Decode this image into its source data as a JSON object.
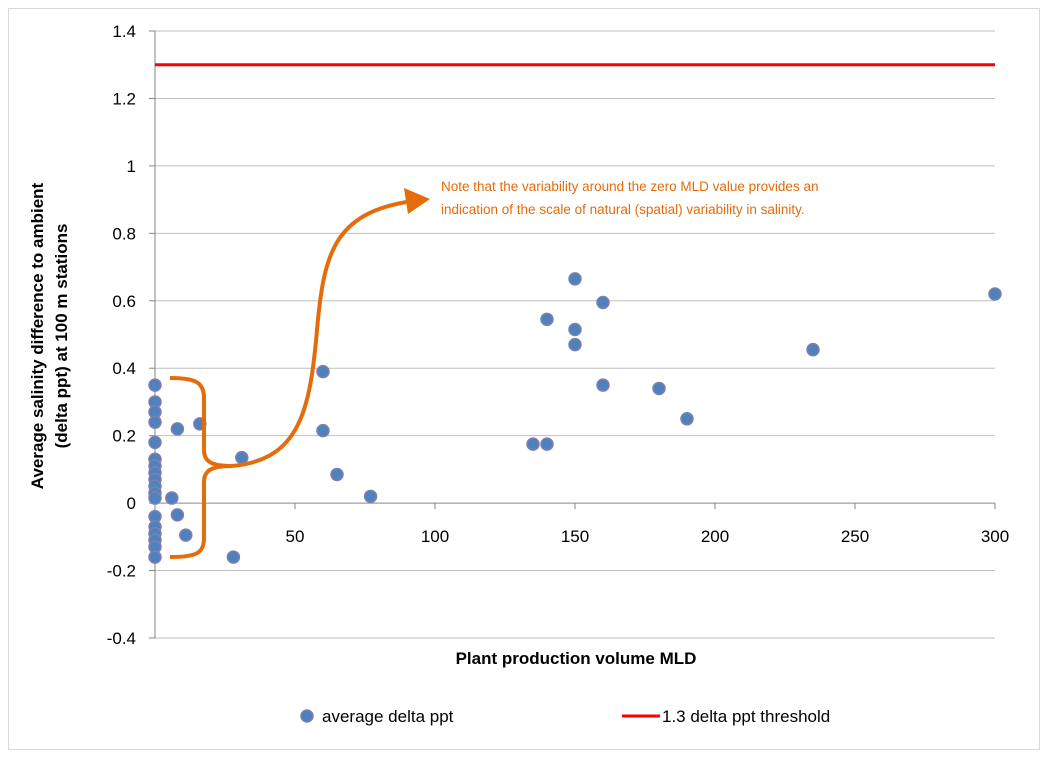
{
  "chart_data": {
    "type": "scatter",
    "xlabel": "Plant production volume MLD",
    "ylabel_lines": [
      "Average salinity difference to ambient",
      "(delta ppt) at 100 m stations"
    ],
    "xlim": [
      0,
      300
    ],
    "ylim": [
      -0.4,
      1.4
    ],
    "x_ticks": [
      "0",
      "50",
      "100",
      "150",
      "200",
      "250",
      "300"
    ],
    "y_ticks": [
      "-0.4",
      "-0.2",
      "0",
      "0.2",
      "0.4",
      "0.6",
      "0.8",
      "1",
      "1.2",
      "1.4"
    ],
    "grid": "horizontal",
    "legend_placement": "bottom",
    "series": [
      {
        "name": "average delta ppt",
        "color": "#4f81bd",
        "edge_color": "#7f7faf",
        "points": [
          [
            0,
            0.35
          ],
          [
            0,
            0.3
          ],
          [
            0,
            0.27
          ],
          [
            0,
            0.24
          ],
          [
            0,
            0.18
          ],
          [
            0,
            0.13
          ],
          [
            0,
            0.11
          ],
          [
            0,
            0.09
          ],
          [
            0,
            0.07
          ],
          [
            0,
            0.05
          ],
          [
            0,
            0.03
          ],
          [
            0,
            0.015
          ],
          [
            0,
            -0.04
          ],
          [
            0,
            -0.07
          ],
          [
            0,
            -0.09
          ],
          [
            0,
            -0.11
          ],
          [
            0,
            -0.13
          ],
          [
            0,
            -0.16
          ],
          [
            6,
            0.015
          ],
          [
            8,
            0.22
          ],
          [
            8,
            -0.035
          ],
          [
            11,
            -0.095
          ],
          [
            16,
            0.235
          ],
          [
            28,
            -0.16
          ],
          [
            31,
            0.135
          ],
          [
            60,
            0.39
          ],
          [
            60,
            0.215
          ],
          [
            65,
            0.085
          ],
          [
            77,
            0.02
          ],
          [
            135,
            0.175
          ],
          [
            140,
            0.545
          ],
          [
            140,
            0.175
          ],
          [
            150,
            0.665
          ],
          [
            150,
            0.515
          ],
          [
            150,
            0.47
          ],
          [
            160,
            0.595
          ],
          [
            160,
            0.35
          ],
          [
            180,
            0.34
          ],
          [
            190,
            0.25
          ],
          [
            235,
            0.455
          ],
          [
            300,
            0.62
          ]
        ]
      },
      {
        "name": "1.3 delta ppt threshold",
        "type": "line",
        "color": "#ff0000",
        "points": [
          [
            0,
            1.3
          ],
          [
            300,
            1.3
          ]
        ]
      }
    ],
    "annotations": [
      {
        "lines": [
          "Note that the variability around the zero MLD value provides an",
          "indication of  the scale of natural (spatial) variability in salinity."
        ],
        "color": "#e36c09"
      }
    ]
  }
}
